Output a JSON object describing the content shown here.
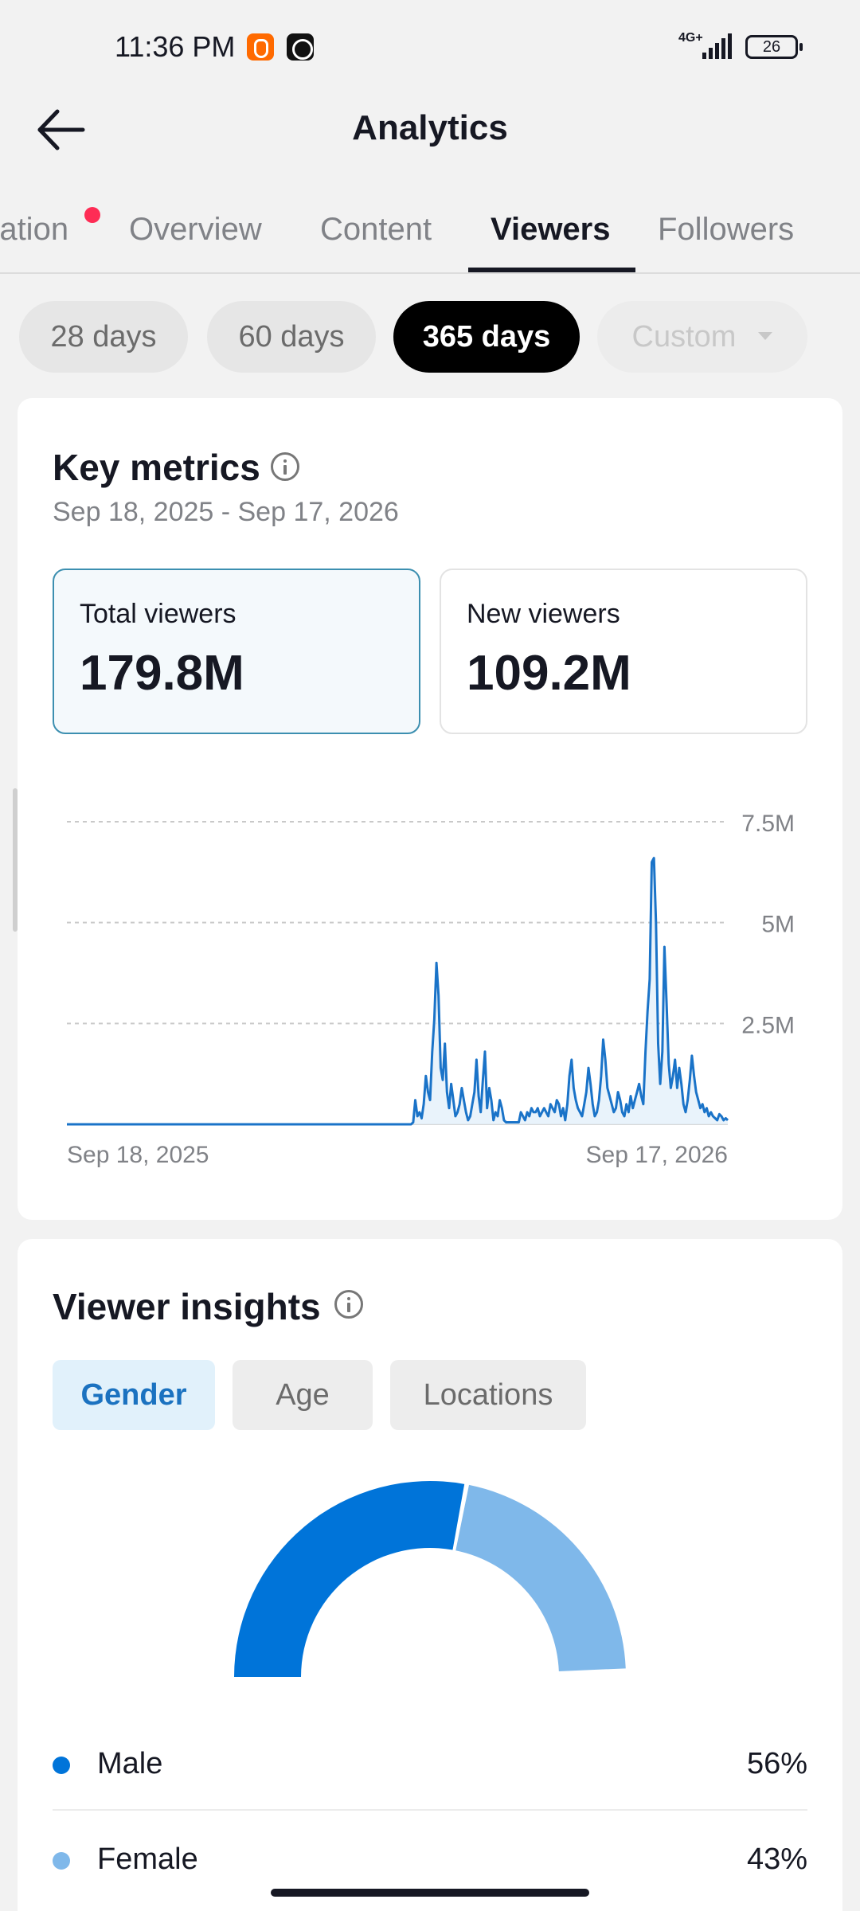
{
  "status_bar": {
    "time": "11:36 PM",
    "network": "4G+",
    "battery": "26"
  },
  "header": {
    "title": "Analytics",
    "back_icon": "arrow-left-icon"
  },
  "tabs": [
    {
      "label": "ration",
      "has_dot": true
    },
    {
      "label": "Overview"
    },
    {
      "label": "Content"
    },
    {
      "label": "Viewers",
      "active": true
    },
    {
      "label": "Followers"
    }
  ],
  "periods": [
    {
      "label": "28 days"
    },
    {
      "label": "60 days"
    },
    {
      "label": "365 days",
      "active": true
    },
    {
      "label": "Custom",
      "disabled": true
    }
  ],
  "key_metrics": {
    "title": "Key metrics",
    "date_range": "Sep 18, 2025 - Sep 17, 2026",
    "total_viewers": {
      "label": "Total viewers",
      "value": "179.8M"
    },
    "new_viewers": {
      "label": "New viewers",
      "value": "109.2M"
    }
  },
  "chart_data": {
    "type": "area",
    "series": [
      {
        "values": [
          0,
          0,
          0,
          0,
          0,
          0,
          0,
          0,
          0,
          0,
          0,
          0,
          0,
          0,
          0,
          0,
          0,
          0,
          0,
          0,
          0,
          0,
          0,
          0,
          0,
          0,
          0,
          0,
          0,
          0,
          0,
          0,
          0,
          0,
          0,
          0,
          0,
          0,
          0,
          0,
          0,
          0,
          0,
          0,
          0,
          0,
          0,
          0,
          0,
          0,
          0,
          0,
          0,
          0,
          0,
          0,
          0,
          0,
          0,
          0,
          0,
          0,
          0,
          0,
          0,
          0,
          0,
          0,
          0,
          0,
          0,
          0,
          0,
          0,
          0,
          0,
          0,
          0,
          0,
          0,
          0,
          0,
          0,
          0,
          0,
          0,
          0,
          0,
          0,
          0,
          0,
          0,
          0,
          0,
          0,
          0,
          0,
          0,
          0,
          0,
          0,
          0,
          0,
          0,
          0,
          0,
          0,
          0,
          0,
          0,
          0,
          0,
          0,
          0,
          0,
          0,
          0,
          0,
          0,
          0,
          0,
          0,
          0,
          0,
          0,
          0,
          0,
          0,
          0,
          0,
          0,
          0,
          0,
          0,
          0,
          0,
          0,
          0,
          0,
          0,
          0,
          0,
          0,
          0,
          0,
          0,
          0,
          0,
          0,
          0,
          0,
          0,
          0,
          0,
          0,
          0,
          0,
          0,
          0,
          0,
          0,
          0,
          0,
          0,
          0.05,
          0.6,
          0.2,
          0.3,
          0.15,
          0.5,
          1.2,
          0.8,
          0.6,
          1.8,
          2.6,
          4.0,
          3.2,
          1.4,
          1.1,
          2.0,
          0.8,
          0.4,
          1.0,
          0.6,
          0.2,
          0.3,
          0.5,
          0.9,
          0.6,
          0.3,
          0.1,
          0.2,
          0.5,
          0.8,
          1.6,
          0.7,
          0.3,
          1.1,
          1.8,
          0.4,
          0.9,
          0.6,
          0.1,
          0.3,
          0.2,
          0.6,
          0.4,
          0.1,
          0.05,
          0.05,
          0.05,
          0.05,
          0.05,
          0.05,
          0.05,
          0.3,
          0.2,
          0.1,
          0.3,
          0.2,
          0.4,
          0.3,
          0.3,
          0.4,
          0.2,
          0.3,
          0.4,
          0.3,
          0.2,
          0.5,
          0.4,
          0.3,
          0.6,
          0.5,
          0.2,
          0.4,
          0.1,
          0.5,
          1.2,
          1.6,
          0.9,
          0.6,
          0.4,
          0.3,
          0.2,
          0.5,
          0.8,
          1.4,
          1.0,
          0.5,
          0.2,
          0.3,
          0.6,
          1.2,
          2.1,
          1.6,
          0.9,
          0.7,
          0.5,
          0.3,
          0.4,
          0.8,
          0.6,
          0.3,
          0.2,
          0.5,
          0.3,
          0.7,
          0.4,
          0.6,
          0.8,
          1.0,
          0.7,
          0.5,
          1.8,
          2.8,
          3.6,
          6.5,
          6.6,
          5.0,
          2.0,
          1.0,
          1.8,
          4.4,
          3.0,
          1.5,
          0.9,
          1.2,
          1.6,
          0.9,
          1.4,
          1.0,
          0.5,
          0.3,
          0.6,
          1.1,
          1.7,
          1.2,
          0.8,
          0.6,
          0.4,
          0.5,
          0.3,
          0.4,
          0.2,
          0.3,
          0.2,
          0.15,
          0.1,
          0.25,
          0.2,
          0.1,
          0.15,
          0.1
        ]
      }
    ],
    "x_start_label": "Sep 18, 2025",
    "x_end_label": "Sep 17, 2026",
    "y_ticks": [
      "2.5M",
      "5M",
      "7.5M"
    ],
    "y_tick_values": [
      2.5,
      5,
      7.5
    ],
    "ylim": [
      0,
      7.5
    ],
    "grid": true,
    "color": "#1a73c8"
  },
  "viewer_insights": {
    "title": "Viewer insights",
    "segments": [
      {
        "label": "Gender",
        "active": true
      },
      {
        "label": "Age"
      },
      {
        "label": "Locations"
      }
    ],
    "gender": [
      {
        "label": "Male",
        "value": "56%",
        "fraction": 0.56,
        "color": "#0074d9"
      },
      {
        "label": "Female",
        "value": "43%",
        "fraction": 0.43,
        "color": "#7fb8ea"
      }
    ]
  }
}
